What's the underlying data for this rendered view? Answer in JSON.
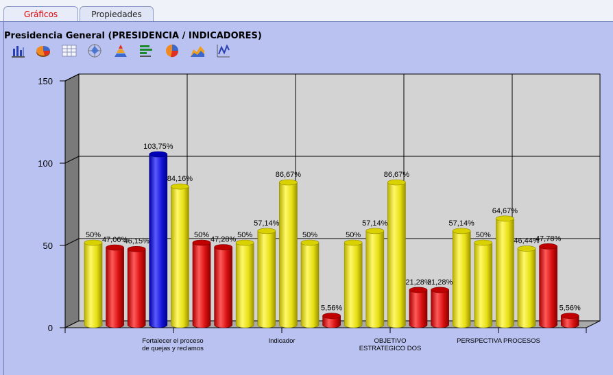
{
  "tabs": [
    {
      "label": "Gráficos",
      "active": true
    },
    {
      "label": "Propiedades",
      "active": false
    }
  ],
  "title": "Presidencia General (PRESIDENCIA / INDICADORES)",
  "toolbar": {
    "icons": [
      "bar-chart-icon",
      "pie-3d-icon",
      "table-grid-icon",
      "radar-icon",
      "pyramid-icon",
      "horizontal-bar-icon",
      "pie-icon",
      "area-icon",
      "line-chart-icon"
    ]
  },
  "colors": {
    "yellow": "#f2ec1a",
    "red": "#e01818",
    "blue": "#1a1ad0"
  },
  "chart_data": {
    "type": "bar",
    "ylim": [
      0,
      150
    ],
    "yticks": [
      0,
      50,
      100,
      150
    ],
    "grid": true,
    "categories": [
      {
        "label_lines": [
          "Fortalecer el proceso",
          "de quejas y reclamos"
        ]
      },
      {
        "label_lines": [
          "Indicador"
        ]
      },
      {
        "label_lines": [
          "OBJETIVO",
          "ESTRATEGICO DOS"
        ]
      },
      {
        "label_lines": [
          "PERSPECTIVA PROCESOS"
        ]
      }
    ],
    "bars": [
      {
        "value": 50,
        "label": "50%",
        "color": "yellow"
      },
      {
        "value": 47.06,
        "label": "47,06%",
        "color": "red"
      },
      {
        "value": 46.15,
        "label": "46,15%",
        "color": "red"
      },
      {
        "value": 103.75,
        "label": "103,75%",
        "color": "blue"
      },
      {
        "value": 84.16,
        "label": "84,16%",
        "color": "yellow"
      },
      {
        "value": 50,
        "label": "50%",
        "color": "red"
      },
      {
        "value": 47.28,
        "label": "47,28%",
        "color": "red"
      },
      {
        "value": 50,
        "label": "50%",
        "color": "yellow"
      },
      {
        "value": 57.14,
        "label": "57,14%",
        "color": "yellow"
      },
      {
        "value": 86.67,
        "label": "86,67%",
        "color": "yellow"
      },
      {
        "value": 50,
        "label": "50%",
        "color": "yellow"
      },
      {
        "value": 5.56,
        "label": "5,56%",
        "color": "red"
      },
      {
        "value": 50,
        "label": "50%",
        "color": "yellow"
      },
      {
        "value": 57.14,
        "label": "57,14%",
        "color": "yellow"
      },
      {
        "value": 86.67,
        "label": "86,67%",
        "color": "yellow"
      },
      {
        "value": 21.28,
        "label": "21,28%",
        "color": "red"
      },
      {
        "value": 21.28,
        "label": "21,28%",
        "color": "red"
      },
      {
        "value": 57.14,
        "label": "57,14%",
        "color": "yellow"
      },
      {
        "value": 50,
        "label": "50%",
        "color": "yellow"
      },
      {
        "value": 64.67,
        "label": "64,67%",
        "color": "yellow"
      },
      {
        "value": 46.44,
        "label": "46,44%",
        "color": "yellow"
      },
      {
        "value": 47.78,
        "label": "47,78%",
        "color": "red"
      },
      {
        "value": 5.56,
        "label": "5,56%",
        "color": "red"
      }
    ]
  }
}
